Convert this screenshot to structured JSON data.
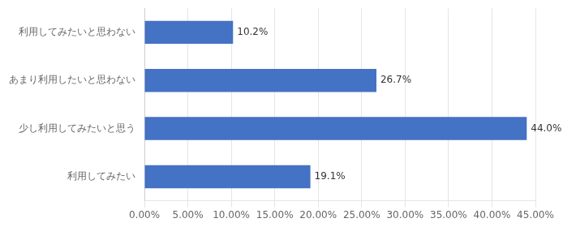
{
  "chart_data": {
    "type": "bar",
    "orientation": "horizontal",
    "categories": [
      "利用してみたい",
      "少し利用してみたいと思う",
      "あまり利用したいと思わない",
      "利用してみたいと思わない"
    ],
    "values": [
      19.1,
      44.0,
      26.7,
      10.2
    ],
    "value_labels": [
      "19.1%",
      "44.0%",
      "26.7%",
      "10.2%"
    ],
    "data_labels": true,
    "color": "#4472C4",
    "xlim": [
      0,
      45
    ],
    "xticks": [
      {
        "value": 0,
        "label": "0.00%"
      },
      {
        "value": 5,
        "label": "5.00%"
      },
      {
        "value": 10,
        "label": "10.00%"
      },
      {
        "value": 15,
        "label": "15.00%"
      },
      {
        "value": 20,
        "label": "20.00%"
      },
      {
        "value": 25,
        "label": "25.00%"
      },
      {
        "value": 30,
        "label": "30.00%"
      },
      {
        "value": 35,
        "label": "35.00%"
      },
      {
        "value": 40,
        "label": "40.00%"
      },
      {
        "value": 45,
        "label": "45.00%"
      }
    ],
    "grid": true
  }
}
